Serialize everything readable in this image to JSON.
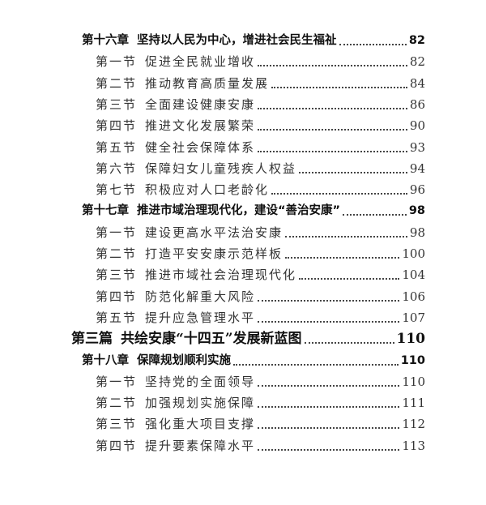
{
  "toc": [
    {
      "level": "chapter",
      "number": "第十六章",
      "title": "坚持以人民为中心，增进社会民生福祉",
      "page": "82"
    },
    {
      "level": "section",
      "number": "第一节",
      "title": "促进全民就业增收",
      "page": "82"
    },
    {
      "level": "section",
      "number": "第二节",
      "title": "推动教育高质量发展",
      "page": "84"
    },
    {
      "level": "section",
      "number": "第三节",
      "title": "全面建设健康安康",
      "page": "86"
    },
    {
      "level": "section",
      "number": "第四节",
      "title": "推进文化发展繁荣",
      "page": "90"
    },
    {
      "level": "section",
      "number": "第五节",
      "title": "健全社会保障体系",
      "page": "93"
    },
    {
      "level": "section",
      "number": "第六节",
      "title": "保障妇女儿童残疾人权益",
      "page": "94"
    },
    {
      "level": "section",
      "number": "第七节",
      "title": "积极应对人口老龄化",
      "page": "96"
    },
    {
      "level": "chapter",
      "number": "第十七章",
      "title": "推进市域治理现代化，建设“善治安康”",
      "page": "98"
    },
    {
      "level": "section",
      "number": "第一节",
      "title": "建设更高水平法治安康",
      "page": "98"
    },
    {
      "level": "section",
      "number": "第二节",
      "title": "打造平安安康示范样板",
      "page": "100"
    },
    {
      "level": "section",
      "number": "第三节",
      "title": "推进市域社会治理现代化",
      "page": "104"
    },
    {
      "level": "section",
      "number": "第四节",
      "title": "防范化解重大风险",
      "page": "106"
    },
    {
      "level": "section",
      "number": "第五节",
      "title": "提升应急管理水平",
      "page": "107"
    },
    {
      "level": "part",
      "number": "第三篇",
      "title": "共绘安康“十四五”发展新蓝图",
      "page": "110"
    },
    {
      "level": "chapter",
      "number": "第十八章",
      "title": "保障规划顺利实施",
      "page": "110"
    },
    {
      "level": "section",
      "number": "第一节",
      "title": "坚持党的全面领导",
      "page": "110"
    },
    {
      "level": "section",
      "number": "第二节",
      "title": "加强规划实施保障",
      "page": "111"
    },
    {
      "level": "section",
      "number": "第三节",
      "title": "强化重大项目支撑",
      "page": "112"
    },
    {
      "level": "section",
      "number": "第四节",
      "title": "提升要素保障水平",
      "page": "113"
    }
  ]
}
